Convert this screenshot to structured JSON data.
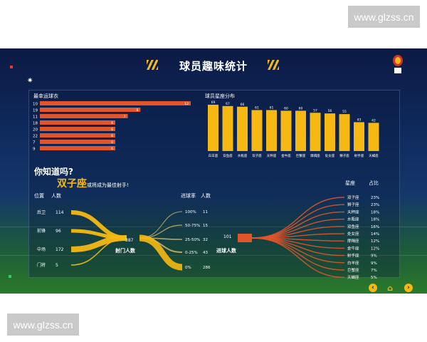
{
  "watermark": "www.glzss.cn",
  "title": "球员趣味统计",
  "lucky_jersey": {
    "title": "最幸运球衣",
    "bars": [
      {
        "num": "10",
        "value": 12
      },
      {
        "num": "19",
        "value": 8
      },
      {
        "num": "11",
        "value": 7
      },
      {
        "num": "18",
        "value": 6
      },
      {
        "num": "20",
        "value": 6
      },
      {
        "num": "22",
        "value": 6
      },
      {
        "num": "7",
        "value": 6
      },
      {
        "num": "9",
        "value": 6
      }
    ]
  },
  "zodiac_chart": {
    "title": "球员星座分布",
    "bars": [
      {
        "name": "白羊座",
        "value": 69
      },
      {
        "name": "双鱼座",
        "value": 67
      },
      {
        "name": "水瓶座",
        "value": 66
      },
      {
        "name": "双子座",
        "value": 61
      },
      {
        "name": "天秤座",
        "value": 61
      },
      {
        "name": "金牛座",
        "value": 60
      },
      {
        "name": "巨蟹座",
        "value": 60
      },
      {
        "name": "摩羯座",
        "value": 57
      },
      {
        "name": "处女座",
        "value": 56
      },
      {
        "name": "狮子座",
        "value": 55
      },
      {
        "name": "射手座",
        "value": 43
      },
      {
        "name": "天蝎座",
        "value": 42
      }
    ]
  },
  "did_you_know": {
    "question": "你知道吗?",
    "highlight": "双子座",
    "rest": "或将成为最佳射手!"
  },
  "flow": {
    "position_header": "位置",
    "count_header": "人数",
    "positions": [
      {
        "name": "后卫",
        "count": "114"
      },
      {
        "name": "前锋",
        "count": "96"
      },
      {
        "name": "中场",
        "count": "172"
      },
      {
        "name": "门将",
        "count": "5"
      }
    ],
    "center_value": "387",
    "center_label": "射门人数",
    "rate_header": "进球率",
    "rate_count_header": "人数",
    "rates": [
      {
        "rate": "100%",
        "count": "11"
      },
      {
        "rate": "50-75%",
        "count": "15"
      },
      {
        "rate": "25-50%",
        "count": "32"
      },
      {
        "rate": "0-25%",
        "count": "43"
      },
      {
        "rate": "0%",
        "count": "286"
      }
    ],
    "scorer_value": "101",
    "scorer_label": "进球人数",
    "zodiac_header": "星座",
    "share_header": "占比",
    "zodiac_shares": [
      {
        "name": "双子座",
        "share": "23%"
      },
      {
        "name": "狮子座",
        "share": "23%"
      },
      {
        "name": "天秤座",
        "share": "18%"
      },
      {
        "name": "水瓶座",
        "share": "18%"
      },
      {
        "name": "双鱼座",
        "share": "16%"
      },
      {
        "name": "处女座",
        "share": "14%"
      },
      {
        "name": "摩羯座",
        "share": "12%"
      },
      {
        "name": "金牛座",
        "share": "12%"
      },
      {
        "name": "射手座",
        "share": "9%"
      },
      {
        "name": "白羊座",
        "share": "9%"
      },
      {
        "name": "巨蟹座",
        "share": "7%"
      },
      {
        "name": "天蝎座",
        "share": "5%"
      }
    ]
  },
  "nav": {
    "prev_icon": "chevron-left-icon",
    "home_icon": "home-icon",
    "next_icon": "chevron-right-icon"
  },
  "colors": {
    "orange": "#e2542a",
    "gold": "#f6b913",
    "navy": "#0c1a44"
  }
}
